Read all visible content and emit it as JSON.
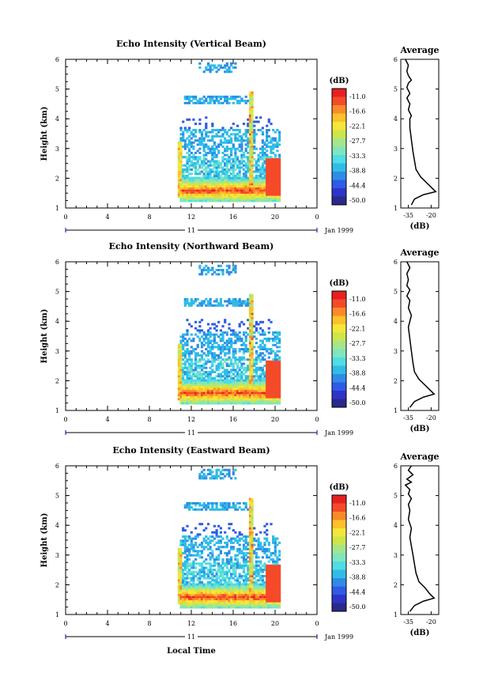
{
  "page": {
    "xlabel": "Local Time",
    "units_label": "(dB)"
  },
  "colorbar": {
    "unit": "(dB)",
    "tick_labels": [
      "-11.0",
      "-16.6",
      "-22.1",
      "-27.7",
      "-33.3",
      "-38.8",
      "-44.4",
      "-50.0"
    ],
    "colors": [
      "#e62020",
      "#f54a2a",
      "#fa8a2a",
      "#fdc12a",
      "#f5e63a",
      "#cde64a",
      "#a6e68a",
      "#7fe6bf",
      "#4fdde6",
      "#2fbde6",
      "#2f8ce6",
      "#2f5be6",
      "#2f34c8",
      "#2a2a8c"
    ]
  },
  "chart_data": [
    {
      "type": "heatmap",
      "title": "Echo Intensity (Vertical Beam)",
      "ylabel": "Height (km)",
      "x_ticks": [
        "0",
        "4",
        "8",
        "12",
        "16",
        "20",
        "0"
      ],
      "x_range": [
        0,
        24
      ],
      "day_label": "11",
      "date_label": "Jan 1999",
      "y_ticks": [
        "1",
        "2",
        "3",
        "4",
        "5",
        "6"
      ],
      "y_range": [
        1,
        6
      ],
      "profile": {
        "title": "Average",
        "xlabel": "(dB)",
        "x_ticks": [
          "-35",
          "-20"
        ],
        "x_range": [
          -40,
          -15
        ],
        "y_ticks": [
          "1",
          "2",
          "3",
          "4",
          "5",
          "6"
        ],
        "points": [
          [
            -33,
            1.1
          ],
          [
            -31,
            1.3
          ],
          [
            -25,
            1.45
          ],
          [
            -17,
            1.55
          ],
          [
            -20,
            1.7
          ],
          [
            -23,
            1.85
          ],
          [
            -27,
            2.05
          ],
          [
            -30,
            2.3
          ],
          [
            -31,
            2.6
          ],
          [
            -32,
            2.9
          ],
          [
            -33,
            3.3
          ],
          [
            -34,
            3.7
          ],
          [
            -34,
            4.0
          ],
          [
            -33,
            4.1
          ],
          [
            -35,
            4.3
          ],
          [
            -34,
            4.5
          ],
          [
            -36,
            4.7
          ],
          [
            -34,
            4.85
          ],
          [
            -36,
            5.05
          ],
          [
            -35,
            5.2
          ],
          [
            -33,
            5.3
          ],
          [
            -35,
            5.45
          ],
          [
            -36,
            5.6
          ],
          [
            -35,
            5.8
          ],
          [
            -37,
            6.0
          ]
        ]
      }
    },
    {
      "type": "heatmap",
      "title": "Echo Intensity (Northward Beam)",
      "ylabel": "Height (km)",
      "x_ticks": [
        "0",
        "4",
        "8",
        "12",
        "16",
        "20",
        "0"
      ],
      "x_range": [
        0,
        24
      ],
      "day_label": "11",
      "date_label": "Jan 1999",
      "y_ticks": [
        "1",
        "2",
        "3",
        "4",
        "5",
        "6"
      ],
      "y_range": [
        1,
        6
      ],
      "profile": {
        "title": "Average",
        "xlabel": "(dB)",
        "x_ticks": [
          "-35",
          "-20"
        ],
        "x_range": [
          -40,
          -15
        ],
        "y_ticks": [
          "1",
          "2",
          "3",
          "4",
          "5",
          "6"
        ],
        "points": [
          [
            -34,
            1.1
          ],
          [
            -31,
            1.3
          ],
          [
            -25,
            1.45
          ],
          [
            -18,
            1.55
          ],
          [
            -21,
            1.7
          ],
          [
            -24,
            1.85
          ],
          [
            -28,
            2.05
          ],
          [
            -31,
            2.3
          ],
          [
            -32,
            2.6
          ],
          [
            -33,
            3.0
          ],
          [
            -34,
            3.4
          ],
          [
            -35,
            3.8
          ],
          [
            -33,
            4.2
          ],
          [
            -35,
            4.45
          ],
          [
            -34,
            4.7
          ],
          [
            -36,
            4.85
          ],
          [
            -34,
            5.05
          ],
          [
            -36,
            5.2
          ],
          [
            -35,
            5.4
          ],
          [
            -36,
            5.6
          ],
          [
            -34,
            5.8
          ],
          [
            -36,
            6.0
          ]
        ]
      }
    },
    {
      "type": "heatmap",
      "title": "Echo Intensity (Eastward Beam)",
      "ylabel": "Height (km)",
      "x_ticks": [
        "0",
        "4",
        "8",
        "12",
        "16",
        "20",
        "0"
      ],
      "x_range": [
        0,
        24
      ],
      "day_label": "11",
      "date_label": "Jan 1999",
      "y_ticks": [
        "1",
        "2",
        "3",
        "4",
        "5",
        "6"
      ],
      "y_range": [
        1,
        6
      ],
      "profile": {
        "title": "Average",
        "xlabel": "(dB)",
        "x_ticks": [
          "-35",
          "-20"
        ],
        "x_range": [
          -40,
          -15
        ],
        "y_ticks": [
          "1",
          "2",
          "3",
          "4",
          "5",
          "6"
        ],
        "points": [
          [
            -34,
            1.1
          ],
          [
            -31,
            1.3
          ],
          [
            -25,
            1.45
          ],
          [
            -18,
            1.55
          ],
          [
            -21,
            1.7
          ],
          [
            -24,
            1.9
          ],
          [
            -28,
            2.1
          ],
          [
            -30,
            2.4
          ],
          [
            -31,
            2.7
          ],
          [
            -32,
            3.0
          ],
          [
            -33,
            3.3
          ],
          [
            -34,
            3.6
          ],
          [
            -33,
            3.9
          ],
          [
            -35,
            4.2
          ],
          [
            -34,
            4.5
          ],
          [
            -35,
            4.7
          ],
          [
            -33,
            4.9
          ],
          [
            -35,
            5.05
          ],
          [
            -34,
            5.2
          ],
          [
            -37,
            5.35
          ],
          [
            -33,
            5.45
          ],
          [
            -36,
            5.55
          ],
          [
            -32,
            5.7
          ],
          [
            -35,
            5.85
          ],
          [
            -33,
            6.0
          ]
        ]
      }
    }
  ]
}
